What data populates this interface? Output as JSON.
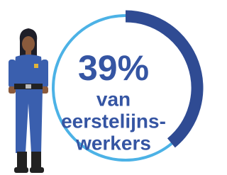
{
  "chart_data": {
    "type": "gauge",
    "values": [
      39
    ],
    "value_labels": [
      "39%"
    ],
    "max": 100,
    "caption_lines": [
      "van",
      "eerstelijns-",
      "werkers"
    ],
    "color": "#2f4b93",
    "track_color": "#4cb2e6",
    "text_color": "#3555a3"
  }
}
